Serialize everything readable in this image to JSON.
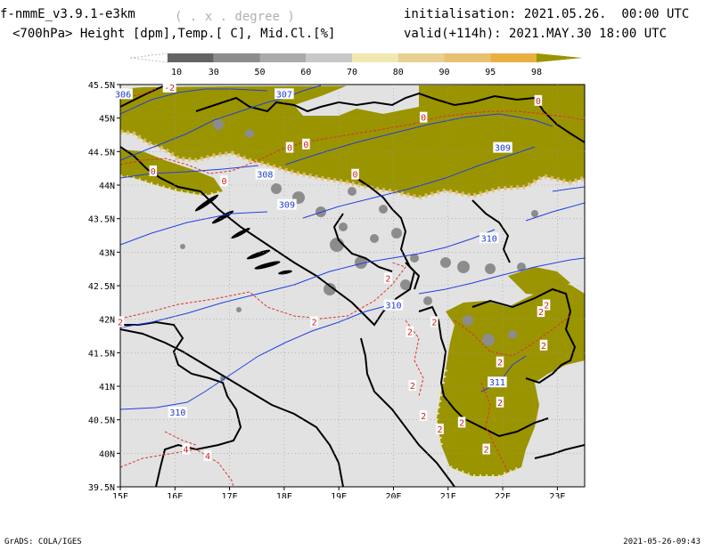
{
  "header": {
    "model": "f-nmmE_v3.9.1-e3km",
    "units": "( . x . degree )",
    "field": "<700hPa> Height [dpm],Temp.[ C], Mid.Cl.[%]",
    "init": "initialisation: 2021.05.26.  00:00 UTC",
    "valid": "valid(+114h): 2021.MAY.30 18:00 UTC"
  },
  "colorbar": {
    "labels": [
      "10",
      "30",
      "50",
      "60",
      "70",
      "80",
      "90",
      "95",
      "98"
    ],
    "colors": [
      "#646464",
      "#8c8c8c",
      "#aaaaaa",
      "#c8c8c8",
      "#f0e8b0",
      "#e8d090",
      "#e8c070",
      "#e8b040",
      "#9a9400"
    ]
  },
  "map": {
    "lat_labels": [
      "45.5N",
      "45N",
      "44.5N",
      "44N",
      "43.5N",
      "43N",
      "42.5N",
      "42N",
      "41.5N",
      "41N",
      "40.5N",
      "40N",
      "39.5N"
    ],
    "lon_labels": [
      "15E",
      "16E",
      "17E",
      "18E",
      "19E",
      "20E",
      "21E",
      "22E",
      "23E"
    ],
    "height_labels": [
      {
        "text": "307",
        "lon": 18.0,
        "lat": 45.35
      },
      {
        "text": "308",
        "lon": 17.65,
        "lat": 44.15
      },
      {
        "text": "309",
        "lon": 18.05,
        "lat": 43.7
      },
      {
        "text": "309",
        "lon": 22.0,
        "lat": 44.55
      },
      {
        "text": "310",
        "lon": 21.75,
        "lat": 43.2
      },
      {
        "text": "310",
        "lon": 20.0,
        "lat": 42.2
      },
      {
        "text": "310",
        "lon": 16.05,
        "lat": 40.6
      },
      {
        "text": "311",
        "lon": 21.9,
        "lat": 41.05
      },
      {
        "text": "306",
        "lon": 15.05,
        "lat": 45.35
      }
    ],
    "temp_labels": [
      {
        "text": "-2",
        "lon": 15.9,
        "lat": 45.45
      },
      {
        "text": "0",
        "lon": 20.55,
        "lat": 45.0
      },
      {
        "text": "0",
        "lon": 22.65,
        "lat": 45.25
      },
      {
        "text": "0",
        "lon": 18.1,
        "lat": 44.55
      },
      {
        "text": "0",
        "lon": 18.4,
        "lat": 44.6
      },
      {
        "text": "0",
        "lon": 15.6,
        "lat": 44.2
      },
      {
        "text": "0",
        "lon": 16.9,
        "lat": 44.05
      },
      {
        "text": "0",
        "lon": 19.3,
        "lat": 44.15
      },
      {
        "text": "2",
        "lon": 15.0,
        "lat": 41.95
      },
      {
        "text": "2",
        "lon": 18.55,
        "lat": 41.95
      },
      {
        "text": "2",
        "lon": 19.9,
        "lat": 42.6
      },
      {
        "text": "2",
        "lon": 20.75,
        "lat": 41.95
      },
      {
        "text": "2",
        "lon": 22.8,
        "lat": 42.2
      },
      {
        "text": "2",
        "lon": 22.75,
        "lat": 41.6
      },
      {
        "text": "2",
        "lon": 22.7,
        "lat": 42.1
      },
      {
        "text": "2",
        "lon": 20.3,
        "lat": 41.8
      },
      {
        "text": "2",
        "lon": 21.95,
        "lat": 41.35
      },
      {
        "text": "2",
        "lon": 21.95,
        "lat": 40.75
      },
      {
        "text": "2",
        "lon": 20.35,
        "lat": 41.0
      },
      {
        "text": "2",
        "lon": 20.55,
        "lat": 40.55
      },
      {
        "text": "2",
        "lon": 20.85,
        "lat": 40.35
      },
      {
        "text": "2",
        "lon": 21.25,
        "lat": 40.45
      },
      {
        "text": "2",
        "lon": 21.7,
        "lat": 40.05
      },
      {
        "text": "4",
        "lon": 16.2,
        "lat": 40.05
      },
      {
        "text": "4",
        "lon": 16.6,
        "lat": 39.95
      }
    ]
  },
  "footer": {
    "credit": "GrADS: COLA/IGES",
    "timestamp": "2021-05-26-09:43"
  }
}
